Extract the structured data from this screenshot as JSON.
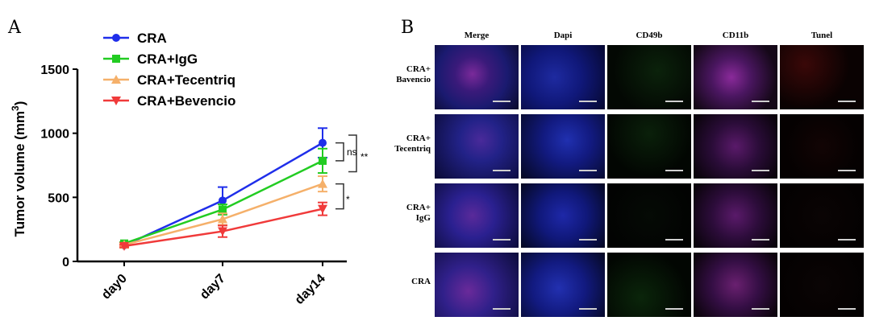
{
  "panel_a": {
    "letter": "A",
    "y_axis": {
      "label_prefix": "Tumor volume (mm",
      "label_sup": "3",
      "label_suffix": ")"
    },
    "significance": {
      "inner_top": "ns",
      "outer": "**",
      "lower": "*"
    },
    "colors": {
      "CRA": "#1f2eea",
      "CRA+IgG": "#22cc22",
      "CRA+Tecentriq": "#f5b06a",
      "CRA+Bevencio": "#f03a3a"
    }
  },
  "panel_b": {
    "letter": "B",
    "columns": [
      "Merge",
      "Dapi",
      "CD49b",
      "CD11b",
      "Tunel"
    ],
    "rows": [
      {
        "line1": "CRA+",
        "line2": "Bavencio"
      },
      {
        "line1": "CRA+",
        "line2": "Tecentriq"
      },
      {
        "line1": "CRA+",
        "line2": "IgG"
      },
      {
        "line1": "CRA",
        "line2": ""
      }
    ]
  },
  "chart_data": {
    "type": "line",
    "categories": [
      "day0",
      "day7",
      "day14"
    ],
    "ylim": [
      0,
      1500
    ],
    "yticks": [
      0,
      500,
      1000,
      1500
    ],
    "series": [
      {
        "name": "CRA",
        "values": [
          125,
          475,
          925
        ],
        "errors": [
          10,
          105,
          115
        ],
        "marker": "circle"
      },
      {
        "name": "CRA+IgG",
        "values": [
          140,
          405,
          785
        ],
        "errors": [
          10,
          40,
          95
        ],
        "marker": "square"
      },
      {
        "name": "CRA+Tecentriq",
        "values": [
          130,
          330,
          605
        ],
        "errors": [
          10,
          45,
          60
        ],
        "marker": "triangle-up"
      },
      {
        "name": "CRA+Bevencio",
        "values": [
          120,
          235,
          410
        ],
        "errors": [
          10,
          45,
          50
        ],
        "marker": "triangle-down"
      }
    ],
    "legend": "top-left",
    "grid": false
  }
}
